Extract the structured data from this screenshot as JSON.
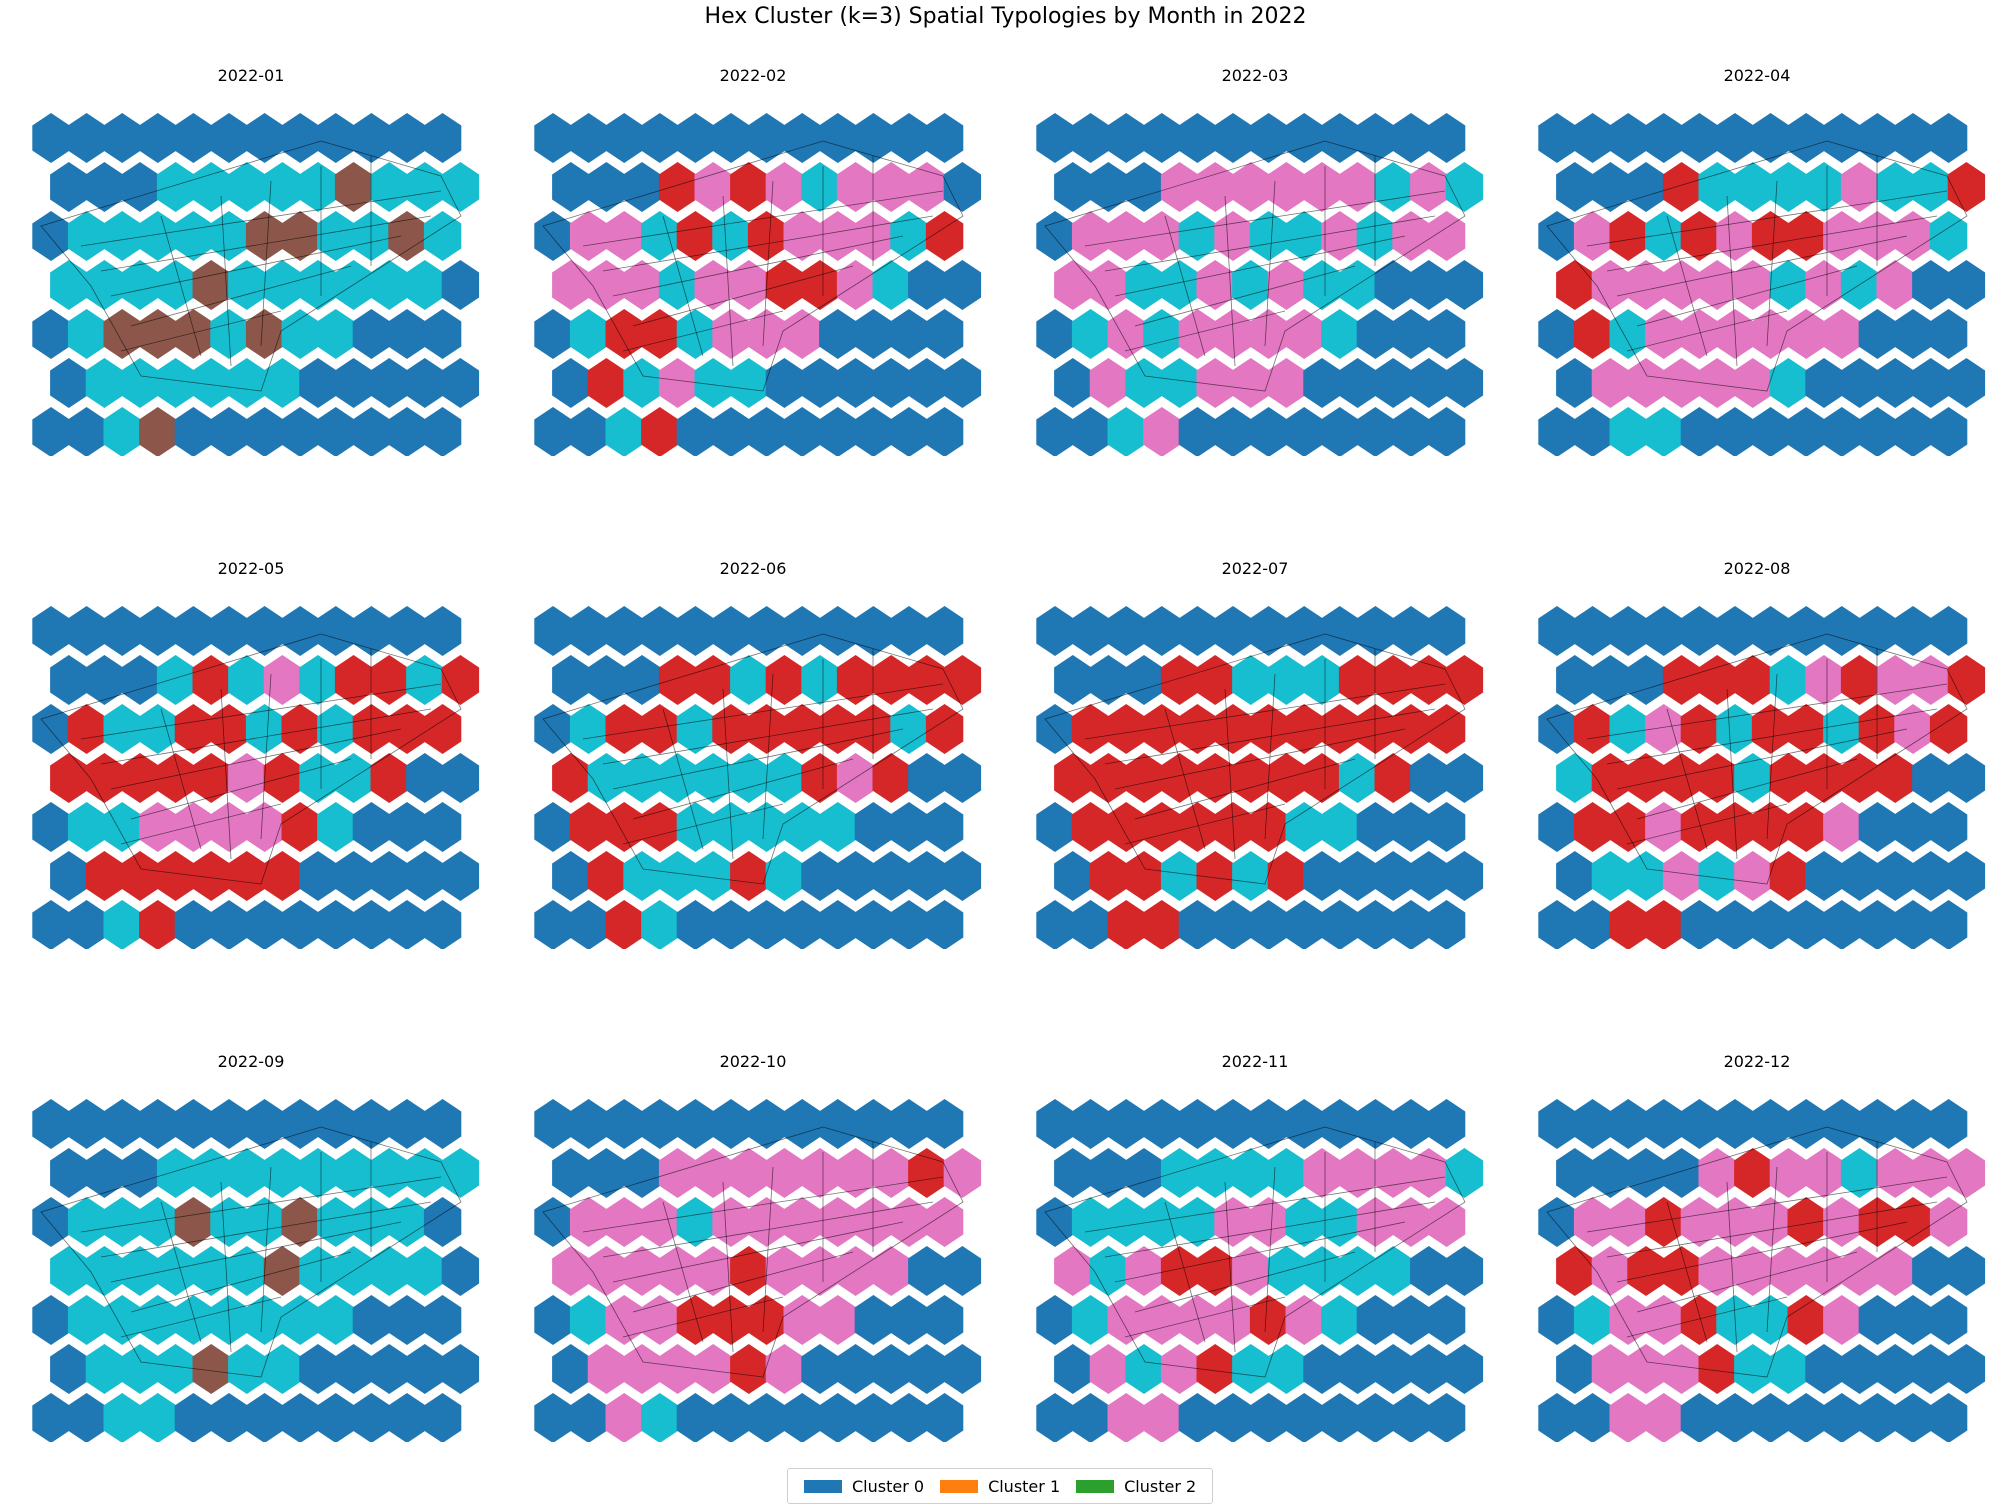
{
  "title": "Hex Cluster (k=3) Spatial Typologies by Month in 2022",
  "colors": {
    "background": "#1f77b4",
    "cyan": "#17becf",
    "pink": "#e377c2",
    "red": "#d62728",
    "brown": "#8c564b",
    "outline": "#000000"
  },
  "legend": [
    {
      "label": "Cluster 0",
      "color": "#1f77b4"
    },
    {
      "label": "Cluster 1",
      "color": "#ff7f0e"
    },
    {
      "label": "Cluster 2",
      "color": "#2ca02c"
    }
  ],
  "chart_data": {
    "type": "heatmap",
    "note_codes": "B=#1f77b4, C=#17becf, P=#e377c2, R=#d62728, N=#8c564b",
    "panels": [
      {
        "title": "2022-01",
        "rows": [
          "BBBBBBBBBBBB",
          "BBBCCCCCNCCC",
          "BCCCCCNNCCNC",
          "CCCCNCCCCCCB",
          "BCNNNCNCCBBB",
          "BCCCCCCBBBBB",
          "BBCNBBBBBBBB"
        ]
      },
      {
        "title": "2022-02",
        "rows": [
          "BBBBBBBBBBBB",
          "BBBRPRPCPPPB",
          "BPPCRCRPPPCR",
          "PPPCPPRRPCBB",
          "BCRRCPPPBBBB",
          "BRCPCCBBBBBB",
          "BBCRBBBBBBBB"
        ]
      },
      {
        "title": "2022-03",
        "rows": [
          "BBBBBBBBBBBB",
          "BBBPPPPPPCPC",
          "BPPPCPCCPCPP",
          "PPCCPCPCCBBB",
          "BCPCPPPPCBBB",
          "BPCCPPPBBBBB",
          "BBCPBBBBBBBB"
        ]
      },
      {
        "title": "2022-04",
        "rows": [
          "BBBBBBBBBBBB",
          "BBBRCCCCPCCR",
          "BPRCRPRRPPPC",
          "RPPPPPCPCPBB",
          "BRCPPPPPPBBB",
          "BPPPPPCBBBBB",
          "BBCCBBBBBBBB"
        ]
      },
      {
        "title": "2022-05",
        "rows": [
          "BBBBBBBBBBBB",
          "BBBCRCPCRRCR",
          "BRCCRRCRCRRR",
          "RRRRRPRCCRBB",
          "BCCPPPPRCBBB",
          "BRRRRRRBBBBB",
          "BBCRBBBBBBBB"
        ]
      },
      {
        "title": "2022-06",
        "rows": [
          "BBBBBBBBBBBB",
          "BBBRRCRCRRRR",
          "BCRRCRRRRRCR",
          "RCCCCCCRPRBB",
          "BRRRCCCCCBBB",
          "BRCCCRCBBBBB",
          "BBRCBBBBBBBB"
        ]
      },
      {
        "title": "2022-07",
        "rows": [
          "BBBBBBBBBBBB",
          "BBBRRCCCRRRR",
          "BRRRRRRRRRRR",
          "RRRRRRRRCRBB",
          "BRRRRRRCCBBB",
          "BRRCRCRBBBBB",
          "BBRRBBBBBBBB"
        ]
      },
      {
        "title": "2022-08",
        "rows": [
          "BBBBBBBBBBBB",
          "BBBRRRCPRPPR",
          "BRCPRCRRCRPR",
          "CRRRRCRRRRBB",
          "BRRPRRRRPBBB",
          "BCCPCPRBBBBB",
          "BBRRBBBBBBBB"
        ]
      },
      {
        "title": "2022-09",
        "rows": [
          "BBBBBBBBBBBB",
          "BBBCCCCCCCCC",
          "BCCCNCCNCCCB",
          "CCCCCCNCCCCB",
          "BCCCCCCCCBBB",
          "BCCCNCCBBBBB",
          "BBCCBBBBBBBB"
        ]
      },
      {
        "title": "2022-10",
        "rows": [
          "BBBBBBBBBBBB",
          "BBBPPPPPPPRP",
          "BPPPCPPPPPPP",
          "PPPPPRPPPPBB",
          "BCPPRRRPPBBB",
          "BPPPPRPBBBBB",
          "BBPCBBBBBBBB"
        ]
      },
      {
        "title": "2022-11",
        "rows": [
          "BBBBBBBBBBBB",
          "BBBCCCCPPPPC",
          "BCCCCPPCCPPP",
          "PCPRRPCCCCBB",
          "BCPPPPRPCBBB",
          "BPCPRCCBBBBB",
          "BBPPBBBBBBBB"
        ]
      },
      {
        "title": "2022-12",
        "rows": [
          "BBBBBBBBBBBB",
          "BBBBPRPPCPPP",
          "BPPRPPPRPRRP",
          "RPRRPPPPPPBB",
          "BCPPRCCRPBBB",
          "BPPPRCCBBBBB",
          "BBPPBBBBBBBB"
        ]
      }
    ]
  }
}
